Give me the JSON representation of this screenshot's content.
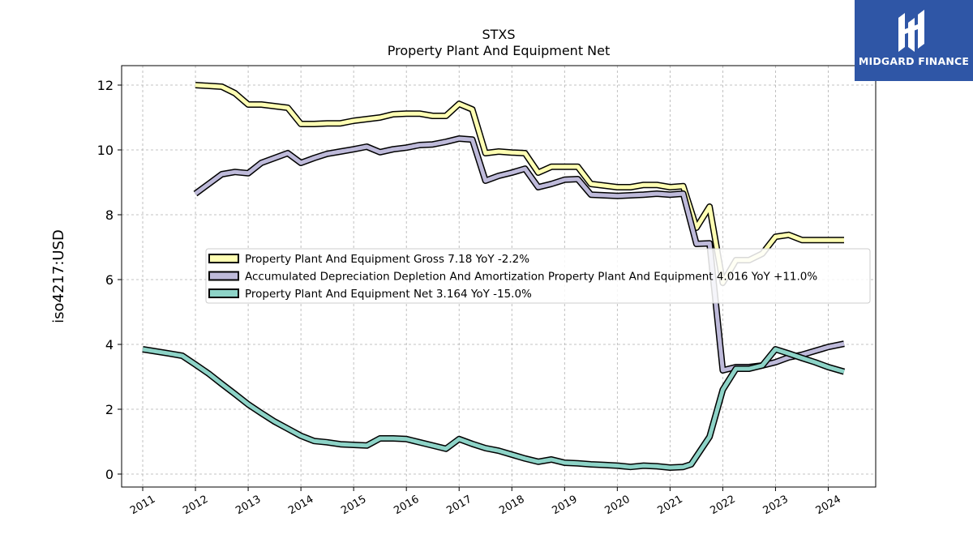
{
  "chart_data": {
    "type": "line",
    "title": "STXS",
    "subtitle": "Property Plant And Equipment Net",
    "ylabel": "iso4217:USD",
    "xlim": [
      2010.6,
      2024.9
    ],
    "ylim": [
      -0.4,
      12.6
    ],
    "yticks": [
      0,
      2,
      4,
      6,
      8,
      10,
      12
    ],
    "xticks": [
      2011,
      2012,
      2013,
      2014,
      2015,
      2016,
      2017,
      2018,
      2019,
      2020,
      2021,
      2022,
      2023,
      2024
    ],
    "grid": true,
    "legend_position": "center-right",
    "series": [
      {
        "name": "Property Plant And Equipment Gross  7.18 YoY -2.2%",
        "color": "#ffffb3",
        "points": [
          [
            2012.0,
            12.0
          ],
          [
            2012.5,
            11.95
          ],
          [
            2012.75,
            11.75
          ],
          [
            2013.0,
            11.4
          ],
          [
            2013.25,
            11.4
          ],
          [
            2013.5,
            11.35
          ],
          [
            2013.75,
            11.3
          ],
          [
            2014.0,
            10.8
          ],
          [
            2014.25,
            10.8
          ],
          [
            2014.5,
            10.82
          ],
          [
            2014.75,
            10.82
          ],
          [
            2015.0,
            10.9
          ],
          [
            2015.25,
            10.95
          ],
          [
            2015.5,
            11.0
          ],
          [
            2015.75,
            11.1
          ],
          [
            2016.0,
            11.12
          ],
          [
            2016.25,
            11.12
          ],
          [
            2016.5,
            11.05
          ],
          [
            2016.75,
            11.05
          ],
          [
            2017.0,
            11.42
          ],
          [
            2017.25,
            11.25
          ],
          [
            2017.5,
            9.9
          ],
          [
            2017.75,
            9.95
          ],
          [
            2018.0,
            9.92
          ],
          [
            2018.25,
            9.9
          ],
          [
            2018.5,
            9.3
          ],
          [
            2018.75,
            9.48
          ],
          [
            2019.0,
            9.48
          ],
          [
            2019.25,
            9.48
          ],
          [
            2019.5,
            8.95
          ],
          [
            2019.75,
            8.9
          ],
          [
            2020.0,
            8.85
          ],
          [
            2020.25,
            8.85
          ],
          [
            2020.5,
            8.92
          ],
          [
            2020.75,
            8.92
          ],
          [
            2021.0,
            8.85
          ],
          [
            2021.25,
            8.88
          ],
          [
            2021.5,
            7.6
          ],
          [
            2021.75,
            8.25
          ],
          [
            2022.0,
            5.9
          ],
          [
            2022.25,
            6.6
          ],
          [
            2022.5,
            6.6
          ],
          [
            2022.75,
            6.8
          ],
          [
            2023.0,
            7.32
          ],
          [
            2023.25,
            7.38
          ],
          [
            2023.5,
            7.22
          ],
          [
            2023.75,
            7.22
          ],
          [
            2024.0,
            7.22
          ],
          [
            2024.3,
            7.22
          ]
        ]
      },
      {
        "name": "Accumulated Depreciation Depletion And Amortization Property Plant And Equipment  4.016 YoY +11.0%",
        "color": "#bebada",
        "points": [
          [
            2012.0,
            8.65
          ],
          [
            2012.5,
            9.25
          ],
          [
            2012.75,
            9.32
          ],
          [
            2013.0,
            9.28
          ],
          [
            2013.25,
            9.6
          ],
          [
            2013.5,
            9.75
          ],
          [
            2013.75,
            9.9
          ],
          [
            2014.0,
            9.6
          ],
          [
            2014.25,
            9.75
          ],
          [
            2014.5,
            9.88
          ],
          [
            2014.75,
            9.95
          ],
          [
            2015.0,
            10.02
          ],
          [
            2015.25,
            10.1
          ],
          [
            2015.5,
            9.93
          ],
          [
            2015.75,
            10.02
          ],
          [
            2016.0,
            10.07
          ],
          [
            2016.25,
            10.15
          ],
          [
            2016.5,
            10.17
          ],
          [
            2016.75,
            10.25
          ],
          [
            2017.0,
            10.35
          ],
          [
            2017.25,
            10.32
          ],
          [
            2017.5,
            9.05
          ],
          [
            2017.75,
            9.2
          ],
          [
            2018.0,
            9.3
          ],
          [
            2018.25,
            9.42
          ],
          [
            2018.5,
            8.85
          ],
          [
            2018.75,
            8.95
          ],
          [
            2019.0,
            9.08
          ],
          [
            2019.25,
            9.1
          ],
          [
            2019.5,
            8.62
          ],
          [
            2019.75,
            8.6
          ],
          [
            2020.0,
            8.58
          ],
          [
            2020.25,
            8.6
          ],
          [
            2020.5,
            8.62
          ],
          [
            2020.75,
            8.65
          ],
          [
            2021.0,
            8.62
          ],
          [
            2021.25,
            8.65
          ],
          [
            2021.5,
            7.1
          ],
          [
            2021.75,
            7.12
          ],
          [
            2022.0,
            3.2
          ],
          [
            2022.25,
            3.3
          ],
          [
            2022.5,
            3.3
          ],
          [
            2022.75,
            3.35
          ],
          [
            2023.0,
            3.45
          ],
          [
            2023.25,
            3.6
          ],
          [
            2023.5,
            3.68
          ],
          [
            2023.75,
            3.8
          ],
          [
            2024.0,
            3.92
          ],
          [
            2024.3,
            4.02
          ]
        ]
      },
      {
        "name": "Property Plant And Equipment Net  3.164 YoY -15.0%",
        "color": "#8dd3c7",
        "points": [
          [
            2011.0,
            3.85
          ],
          [
            2011.5,
            3.72
          ],
          [
            2011.75,
            3.65
          ],
          [
            2012.0,
            3.38
          ],
          [
            2012.25,
            3.1
          ],
          [
            2012.5,
            2.78
          ],
          [
            2012.75,
            2.47
          ],
          [
            2013.0,
            2.15
          ],
          [
            2013.25,
            1.88
          ],
          [
            2013.5,
            1.62
          ],
          [
            2013.75,
            1.4
          ],
          [
            2014.0,
            1.18
          ],
          [
            2014.25,
            1.02
          ],
          [
            2014.5,
            0.98
          ],
          [
            2014.75,
            0.92
          ],
          [
            2015.0,
            0.9
          ],
          [
            2015.25,
            0.88
          ],
          [
            2015.5,
            1.1
          ],
          [
            2015.75,
            1.1
          ],
          [
            2016.0,
            1.08
          ],
          [
            2016.25,
            0.98
          ],
          [
            2016.5,
            0.88
          ],
          [
            2016.75,
            0.78
          ],
          [
            2017.0,
            1.08
          ],
          [
            2017.25,
            0.93
          ],
          [
            2017.5,
            0.8
          ],
          [
            2017.75,
            0.72
          ],
          [
            2018.0,
            0.6
          ],
          [
            2018.25,
            0.48
          ],
          [
            2018.5,
            0.38
          ],
          [
            2018.75,
            0.45
          ],
          [
            2019.0,
            0.35
          ],
          [
            2019.25,
            0.33
          ],
          [
            2019.5,
            0.3
          ],
          [
            2019.75,
            0.28
          ],
          [
            2020.0,
            0.26
          ],
          [
            2020.25,
            0.22
          ],
          [
            2020.5,
            0.26
          ],
          [
            2020.75,
            0.24
          ],
          [
            2021.0,
            0.2
          ],
          [
            2021.25,
            0.22
          ],
          [
            2021.4,
            0.3
          ],
          [
            2021.75,
            1.15
          ],
          [
            2022.0,
            2.6
          ],
          [
            2022.25,
            3.25
          ],
          [
            2022.5,
            3.25
          ],
          [
            2022.75,
            3.35
          ],
          [
            2023.0,
            3.85
          ],
          [
            2023.25,
            3.72
          ],
          [
            2023.5,
            3.58
          ],
          [
            2023.75,
            3.45
          ],
          [
            2024.0,
            3.3
          ],
          [
            2024.3,
            3.16
          ]
        ]
      }
    ]
  },
  "logo": {
    "text": "MIDGARD FINANCE",
    "icon": "midgard-logo-icon",
    "background": "#2f56a6"
  }
}
